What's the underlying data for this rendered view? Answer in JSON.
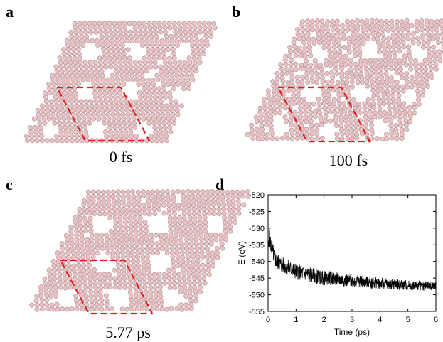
{
  "panels": [
    {
      "letter": "a",
      "caption": "0 fs"
    },
    {
      "letter": "b",
      "caption": "100 fs"
    },
    {
      "letter": "c",
      "caption": "5.77 ps"
    },
    {
      "letter": "d",
      "caption": ""
    }
  ],
  "colors": {
    "atom": "#e8c4c6",
    "atom_stroke": "#b89395",
    "cell": "#e41a1c",
    "trace": "#000000"
  },
  "chart_data": {
    "type": "line",
    "title": "",
    "xlabel": "Time (ps)",
    "ylabel": "E (eV)",
    "xlim": [
      0,
      6
    ],
    "ylim": [
      -555,
      -520
    ],
    "xticks": [
      0,
      1,
      2,
      3,
      4,
      5,
      6
    ],
    "yticks": [
      -520,
      -525,
      -530,
      -535,
      -540,
      -545,
      -550,
      -555
    ],
    "series": [
      {
        "values_x": [
          0,
          0.05,
          0.1,
          0.2,
          0.3,
          0.5,
          0.75,
          1.0,
          1.25,
          1.5,
          1.75,
          2.0,
          2.25,
          2.5,
          2.75,
          3.0,
          3.25,
          3.5,
          3.75,
          4.0,
          4.25,
          4.5,
          4.75,
          5.0,
          5.25,
          5.5,
          5.75,
          6.0
        ],
        "values_y": [
          -537,
          -533,
          -535,
          -538,
          -540,
          -541,
          -542,
          -543,
          -543.5,
          -544,
          -544.5,
          -545,
          -545,
          -545.3,
          -545.6,
          -545.8,
          -546,
          -546.2,
          -546.4,
          -546.5,
          -546.7,
          -546.9,
          -547,
          -547.1,
          -547.2,
          -547.3,
          -547.3,
          -547.4
        ]
      }
    ]
  }
}
